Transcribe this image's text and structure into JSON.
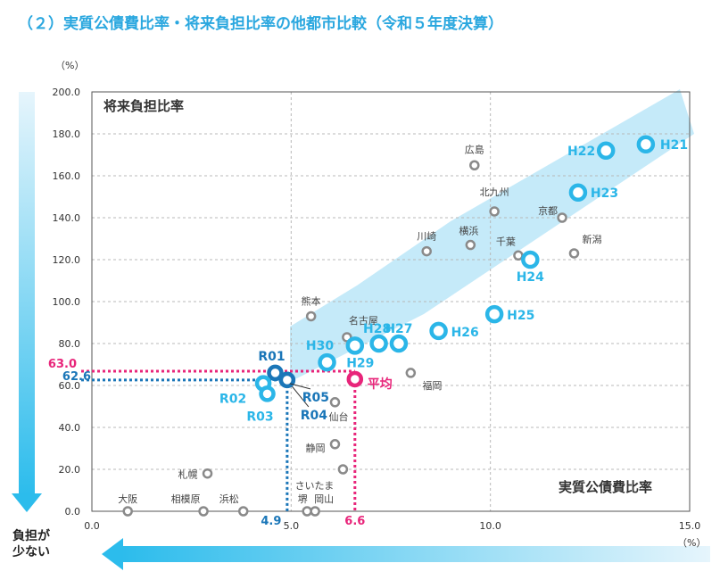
{
  "page": {
    "title": "（２）実質公債費比率・将来負担比率の他都市比較（令和５年度決算）"
  },
  "burden_note": "負担が\n少ない",
  "colors": {
    "h_series": "#2bb6e8",
    "r_series": "#1a76b8",
    "city": "#8a8a8a",
    "average": "#e8257a",
    "trend_band": "#bfe8f8",
    "grid": "#b8b8b8"
  },
  "chart_data": {
    "type": "scatter",
    "xlabel": "実質公債費比率",
    "ylabel": "将来負担比率",
    "x_unit": "（%）",
    "y_unit": "（%）",
    "xlim": [
      0,
      15
    ],
    "ylim": [
      0,
      200
    ],
    "x_ticks": [
      {
        "v": 0,
        "label": "0.0"
      },
      {
        "v": 5,
        "label": "5.0"
      },
      {
        "v": 10,
        "label": "10.0"
      },
      {
        "v": 15,
        "label": "15.0"
      }
    ],
    "y_ticks": [
      {
        "v": 0,
        "label": "0.0"
      },
      {
        "v": 20,
        "label": "20.0"
      },
      {
        "v": 40,
        "label": "40.0"
      },
      {
        "v": 60,
        "label": "60.0"
      },
      {
        "v": 80,
        "label": "80.0"
      },
      {
        "v": 100,
        "label": "100.0"
      },
      {
        "v": 120,
        "label": "120.0"
      },
      {
        "v": 140,
        "label": "140.0"
      },
      {
        "v": 160,
        "label": "160.0"
      },
      {
        "v": 180,
        "label": "180.0"
      },
      {
        "v": 200,
        "label": "200.0"
      }
    ],
    "grid": true,
    "cities": [
      {
        "name": "大阪",
        "x": 0.9,
        "y": 0.0
      },
      {
        "name": "相模原",
        "x": 2.8,
        "y": 0.0
      },
      {
        "name": "浜松",
        "x": 3.8,
        "y": 0.0
      },
      {
        "name": "堺",
        "x": 5.4,
        "y": 0.0
      },
      {
        "name": "岡山",
        "x": 5.6,
        "y": 0.0
      },
      {
        "name": "札幌",
        "x": 2.9,
        "y": 18.0
      },
      {
        "name": "さいたま",
        "x": 6.3,
        "y": 20.0
      },
      {
        "name": "静岡",
        "x": 6.1,
        "y": 32.0
      },
      {
        "name": "仙台",
        "x": 6.1,
        "y": 52.0
      },
      {
        "name": "福岡",
        "x": 8.0,
        "y": 66.0
      },
      {
        "name": "名古屋",
        "x": 6.4,
        "y": 83.0
      },
      {
        "name": "熊本",
        "x": 5.5,
        "y": 93.0
      },
      {
        "name": "川崎",
        "x": 8.4,
        "y": 124.0
      },
      {
        "name": "横浜",
        "x": 9.5,
        "y": 127.0
      },
      {
        "name": "千葉",
        "x": 10.7,
        "y": 122.0
      },
      {
        "name": "新潟",
        "x": 12.1,
        "y": 123.0
      },
      {
        "name": "北九州",
        "x": 10.1,
        "y": 143.0
      },
      {
        "name": "京都",
        "x": 11.8,
        "y": 140.0
      },
      {
        "name": "広島",
        "x": 9.6,
        "y": 165.0
      }
    ],
    "history": [
      {
        "name": "H21",
        "x": 13.9,
        "y": 175.0
      },
      {
        "name": "H22",
        "x": 12.9,
        "y": 172.0
      },
      {
        "name": "H23",
        "x": 12.2,
        "y": 152.0
      },
      {
        "name": "H24",
        "x": 11.0,
        "y": 120.0
      },
      {
        "name": "H25",
        "x": 10.1,
        "y": 94.0
      },
      {
        "name": "H26",
        "x": 8.7,
        "y": 86.0
      },
      {
        "name": "H27",
        "x": 7.7,
        "y": 80.0
      },
      {
        "name": "H28",
        "x": 7.2,
        "y": 80.0
      },
      {
        "name": "H29",
        "x": 6.6,
        "y": 79.0
      },
      {
        "name": "H30",
        "x": 5.9,
        "y": 71.0
      },
      {
        "name": "R01",
        "x": 4.6,
        "y": 66.0
      },
      {
        "name": "R02",
        "x": 4.3,
        "y": 61.0
      },
      {
        "name": "R03",
        "x": 4.4,
        "y": 56.0
      },
      {
        "name": "R04",
        "x": 4.9,
        "y": 62.6
      },
      {
        "name": "R05",
        "x": 4.9,
        "y": 62.6
      }
    ],
    "average": {
      "name": "平均",
      "x": 6.6,
      "y": 63.0
    },
    "ref_lines": {
      "r05": {
        "x": 4.9,
        "y": 62.6,
        "x_label": "4.9",
        "y_label": "62.6"
      },
      "average": {
        "x": 6.6,
        "y": 63.0,
        "x_label": "6.6",
        "y_label": "63.0"
      }
    }
  }
}
